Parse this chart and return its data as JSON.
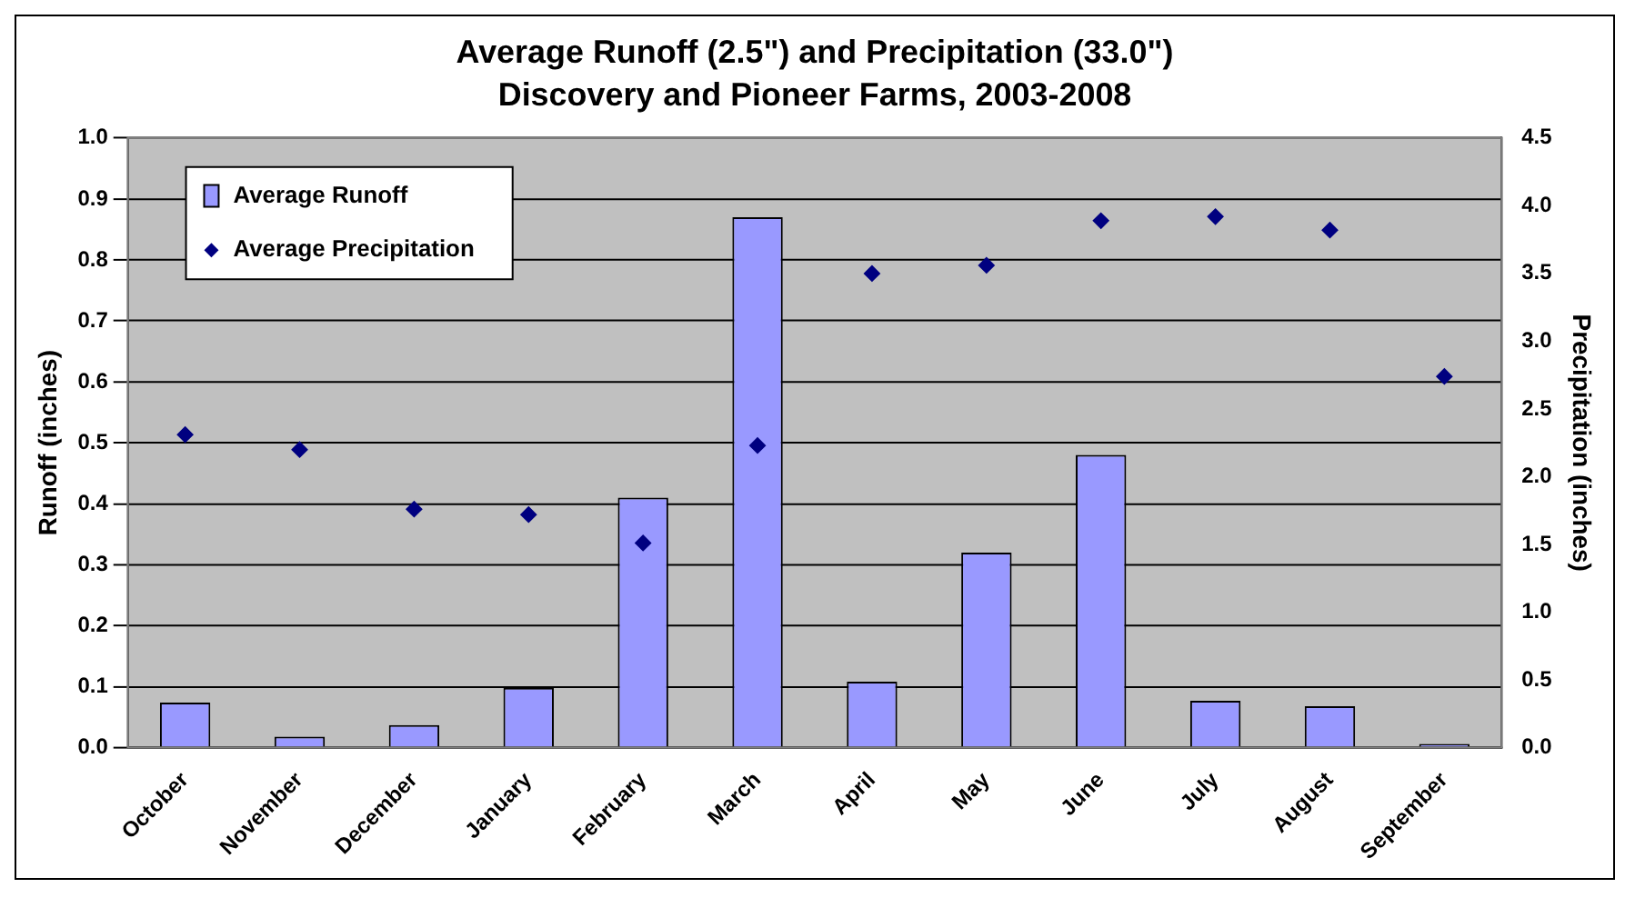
{
  "chart_data": {
    "type": "bar",
    "title": "Average Runoff (2.5\") and Precipitation (33.0\")",
    "subtitle": "Discovery and Pioneer Farms, 2003-2008",
    "ylabel": "Runoff (inches)",
    "y2label": "Precipitation (inches)",
    "categories": [
      "October",
      "November",
      "December",
      "January",
      "February",
      "March",
      "April",
      "May",
      "June",
      "July",
      "August",
      "September"
    ],
    "series": [
      {
        "name": "Average Runoff",
        "color": "#9999ff",
        "values": [
          0.074,
          0.018,
          0.037,
          0.098,
          0.41,
          0.87,
          0.108,
          0.32,
          0.48,
          0.077,
          0.068,
          0.006
        ]
      },
      {
        "name": "Average Precipitation",
        "type": "scatter",
        "axis": "y2",
        "color": "#000080",
        "x": [
          "October",
          "November",
          "December",
          "January",
          "February",
          "March",
          "April",
          "May",
          "June",
          "July",
          "August",
          "September"
        ],
        "values": [
          2.31,
          2.2,
          1.76,
          1.72,
          1.51,
          2.23,
          3.5,
          3.56,
          3.89,
          3.92,
          3.82,
          2.74
        ]
      }
    ],
    "ylim": [
      0,
      1
    ],
    "yticks": [
      {
        "value": 0,
        "label": "0.0"
      },
      {
        "value": 0.1,
        "label": "0.1"
      },
      {
        "value": 0.2,
        "label": "0.2"
      },
      {
        "value": 0.3,
        "label": "0.3"
      },
      {
        "value": 0.4,
        "label": "0.4"
      },
      {
        "value": 0.5,
        "label": "0.5"
      },
      {
        "value": 0.6,
        "label": "0.6"
      },
      {
        "value": 0.7,
        "label": "0.7"
      },
      {
        "value": 0.8,
        "label": "0.8"
      },
      {
        "value": 0.9,
        "label": "0.9"
      },
      {
        "value": 1,
        "label": "1.0"
      }
    ],
    "y2lim": [
      0,
      4.5
    ],
    "y2ticks": [
      {
        "value": 0,
        "label": "0.0"
      },
      {
        "value": 0.5,
        "label": "0.5"
      },
      {
        "value": 1,
        "label": "1.0"
      },
      {
        "value": 1.5,
        "label": "1.5"
      },
      {
        "value": 2,
        "label": "2.0"
      },
      {
        "value": 2.5,
        "label": "2.5"
      },
      {
        "value": 3,
        "label": "3.0"
      },
      {
        "value": 3.5,
        "label": "3.5"
      },
      {
        "value": 4,
        "label": "4.0"
      },
      {
        "value": 4.5,
        "label": "4.5"
      }
    ],
    "grid": "y",
    "legend": "top left",
    "marker": "diamond"
  }
}
